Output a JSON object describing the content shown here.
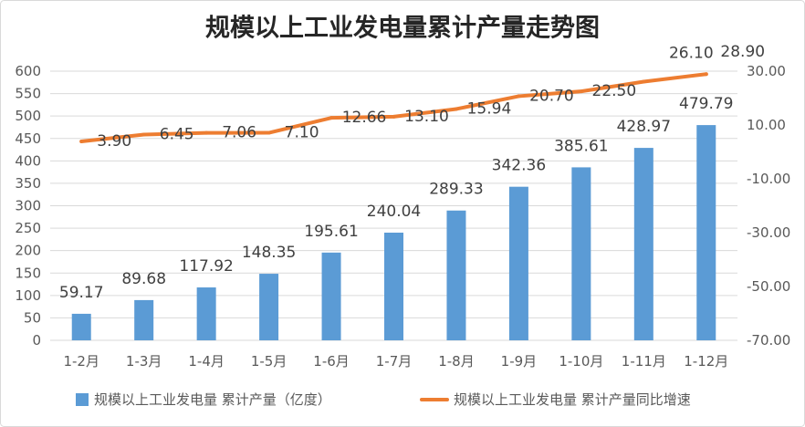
{
  "chart_data": {
    "type": "bar",
    "title": "规模以上工业发电量累计产量走势图",
    "categories": [
      "1-2月",
      "1-3月",
      "1-4月",
      "1-5月",
      "1-6月",
      "1-7月",
      "1-8月",
      "1-9月",
      "1-10月",
      "1-11月",
      "1-12月"
    ],
    "series": [
      {
        "name": "规模以上工业发电量 累计产量（亿度）",
        "type": "bar",
        "axis": "left",
        "values": [
          59.17,
          89.68,
          117.92,
          148.35,
          195.61,
          240.04,
          289.33,
          342.36,
          385.61,
          428.97,
          479.79
        ],
        "value_labels": [
          "59.17",
          "89.68",
          "117.92",
          "148.35",
          "195.61",
          "240.04",
          "289.33",
          "342.36",
          "385.61",
          "428.97",
          "479.79"
        ]
      },
      {
        "name": "规模以上工业发电量 累计产量同比增速",
        "type": "line",
        "axis": "right",
        "values": [
          3.9,
          6.45,
          7.06,
          7.1,
          12.66,
          13.1,
          15.94,
          20.7,
          22.5,
          26.1,
          28.9
        ],
        "value_labels": [
          "3.90",
          "6.45",
          "7.06",
          "7.10",
          "12.66",
          "13.10",
          "15.94",
          "20.70",
          "22.50",
          "26.10",
          "28.90"
        ]
      }
    ],
    "y_left": {
      "min": 0,
      "max": 600,
      "step": 50,
      "tick_labels": [
        "0",
        "50",
        "100",
        "150",
        "200",
        "250",
        "300",
        "350",
        "400",
        "450",
        "500",
        "550",
        "600"
      ]
    },
    "y_right": {
      "min": -70,
      "max": 30,
      "step": 20,
      "tick_labels": [
        "-70.00",
        "-50.00",
        "-30.00",
        "-10.00",
        "10.00",
        "30.00"
      ]
    },
    "grid": true,
    "legend_position": "bottom",
    "colors": {
      "bars": "#5B9BD5",
      "line": "#ED7D31",
      "grid": "#D9D9D9"
    }
  }
}
